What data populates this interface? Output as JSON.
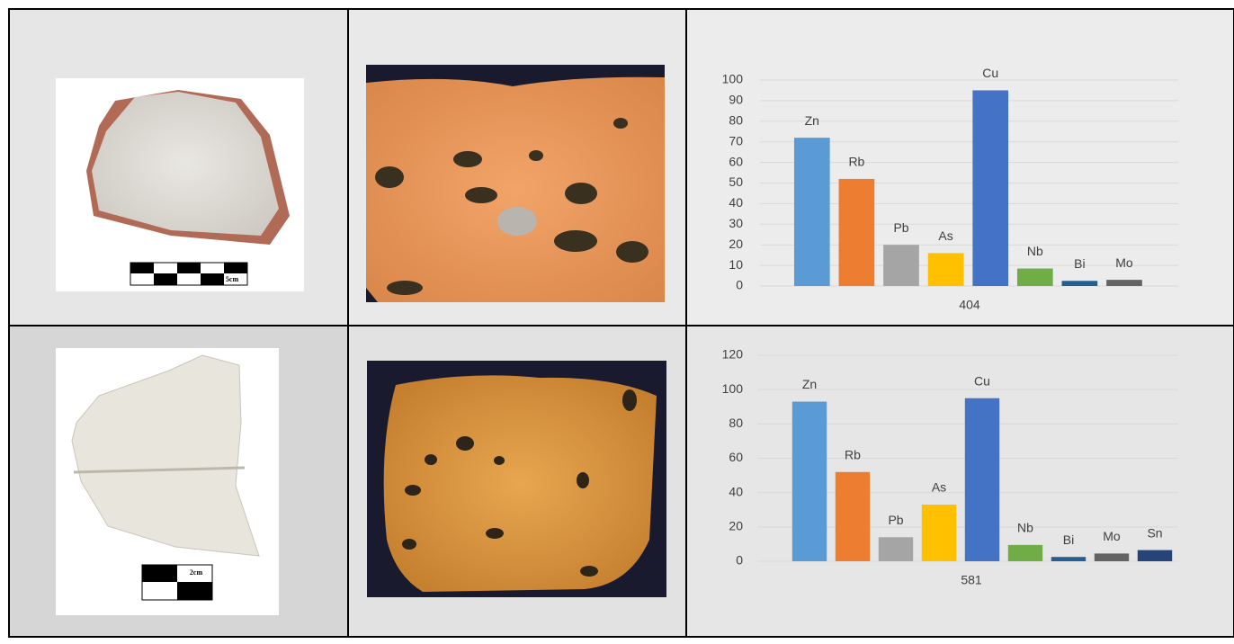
{
  "chart_data": [
    {
      "type": "bar",
      "xlabel": "404",
      "categories": [
        "Zn",
        "Rb",
        "Pb",
        "As",
        "Cu",
        "Nb",
        "Bi",
        "Mo"
      ],
      "values": [
        72,
        52,
        20,
        16,
        95,
        8.5,
        2.5,
        3
      ],
      "colors": [
        "#5b9bd5",
        "#ed7d31",
        "#a5a5a5",
        "#ffc000",
        "#4472c4",
        "#70ad47",
        "#255e91",
        "#636363"
      ],
      "ylim": [
        0,
        100
      ],
      "yticks": [
        0,
        10,
        20,
        30,
        40,
        50,
        60,
        70,
        80,
        90,
        100
      ],
      "grid": true
    },
    {
      "type": "bar",
      "xlabel": "581",
      "categories": [
        "Zn",
        "Rb",
        "Pb",
        "As",
        "Cu",
        "Nb",
        "Bi",
        "Mo",
        "Sn"
      ],
      "values": [
        93,
        52,
        14,
        33,
        95,
        9.5,
        2.5,
        4.5,
        6.5
      ],
      "colors": [
        "#5b9bd5",
        "#ed7d31",
        "#a5a5a5",
        "#ffc000",
        "#4472c4",
        "#70ad47",
        "#255e91",
        "#636363",
        "#264478"
      ],
      "ylim": [
        0,
        120
      ],
      "yticks": [
        0,
        20,
        40,
        60,
        80,
        100,
        120
      ],
      "grid": true
    }
  ],
  "scale_labels": [
    "5cm",
    "2cm"
  ]
}
